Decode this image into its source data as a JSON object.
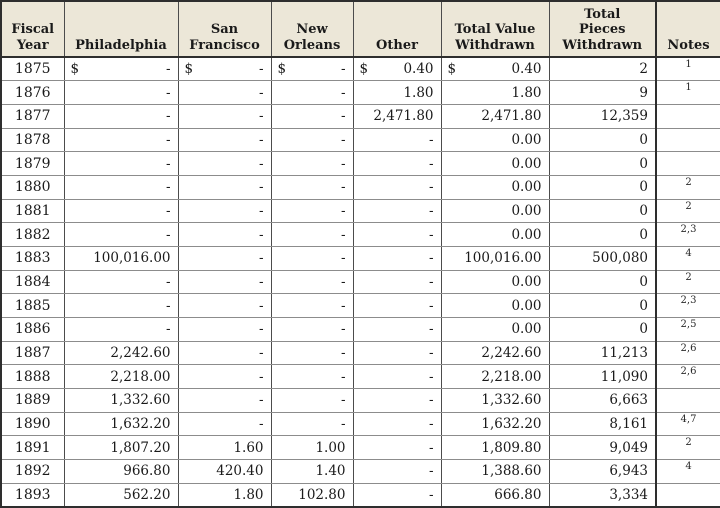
{
  "colors": {
    "header_background": "#ECE7D8",
    "grid_line": "#8C8C8C",
    "heavy_border": "#2E2E2E",
    "text": "#1A1A1A",
    "cell_background": "#FFFFFF"
  },
  "chart_data": {
    "type": "table",
    "title": "",
    "columns": [
      {
        "key": "fiscal_year",
        "label": "Fiscal\nYear"
      },
      {
        "key": "philadelphia",
        "label": "Philadelphia"
      },
      {
        "key": "san_francisco",
        "label": "San\nFrancisco"
      },
      {
        "key": "new_orleans",
        "label": "New\nOrleans"
      },
      {
        "key": "other",
        "label": "Other"
      },
      {
        "key": "total_value_withdrawn",
        "label": "Total Value\nWithdrawn"
      },
      {
        "key": "total_pieces_withdrawn",
        "label": "Total\nPieces\nWithdrawn"
      },
      {
        "key": "notes",
        "label": "Notes"
      }
    ],
    "value_column_keys": [
      "philadelphia",
      "san_francisco",
      "new_orleans",
      "other",
      "total_value_withdrawn",
      "total_pieces_withdrawn"
    ],
    "rows": [
      {
        "year": "1875",
        "values": [
          [
            "$",
            "-"
          ],
          [
            "$",
            "-"
          ],
          [
            "$",
            "-"
          ],
          [
            "$",
            "0.40"
          ],
          [
            "$",
            "0.40"
          ],
          [
            "",
            "2"
          ]
        ],
        "notes": "1"
      },
      {
        "year": "1876",
        "values": [
          [
            "",
            "-"
          ],
          [
            "",
            "-"
          ],
          [
            "",
            "-"
          ],
          [
            "",
            "1.80"
          ],
          [
            "",
            "1.80"
          ],
          [
            "",
            "9"
          ]
        ],
        "notes": "1"
      },
      {
        "year": "1877",
        "values": [
          [
            "",
            "-"
          ],
          [
            "",
            "-"
          ],
          [
            "",
            "-"
          ],
          [
            "",
            "2,471.80"
          ],
          [
            "",
            "2,471.80"
          ],
          [
            "",
            "12,359"
          ]
        ],
        "notes": ""
      },
      {
        "year": "1878",
        "values": [
          [
            "",
            "-"
          ],
          [
            "",
            "-"
          ],
          [
            "",
            "-"
          ],
          [
            "",
            "-"
          ],
          [
            "",
            "0.00"
          ],
          [
            "",
            "0"
          ]
        ],
        "notes": ""
      },
      {
        "year": "1879",
        "values": [
          [
            "",
            "-"
          ],
          [
            "",
            "-"
          ],
          [
            "",
            "-"
          ],
          [
            "",
            "-"
          ],
          [
            "",
            "0.00"
          ],
          [
            "",
            "0"
          ]
        ],
        "notes": ""
      },
      {
        "year": "1880",
        "values": [
          [
            "",
            "-"
          ],
          [
            "",
            "-"
          ],
          [
            "",
            "-"
          ],
          [
            "",
            "-"
          ],
          [
            "",
            "0.00"
          ],
          [
            "",
            "0"
          ]
        ],
        "notes": "2"
      },
      {
        "year": "1881",
        "values": [
          [
            "",
            "-"
          ],
          [
            "",
            "-"
          ],
          [
            "",
            "-"
          ],
          [
            "",
            "-"
          ],
          [
            "",
            "0.00"
          ],
          [
            "",
            "0"
          ]
        ],
        "notes": "2"
      },
      {
        "year": "1882",
        "values": [
          [
            "",
            "-"
          ],
          [
            "",
            "-"
          ],
          [
            "",
            "-"
          ],
          [
            "",
            "-"
          ],
          [
            "",
            "0.00"
          ],
          [
            "",
            "0"
          ]
        ],
        "notes": "2,3"
      },
      {
        "year": "1883",
        "values": [
          [
            "",
            "100,016.00"
          ],
          [
            "",
            "-"
          ],
          [
            "",
            "-"
          ],
          [
            "",
            "-"
          ],
          [
            "",
            "100,016.00"
          ],
          [
            "",
            "500,080"
          ]
        ],
        "notes": "4"
      },
      {
        "year": "1884",
        "values": [
          [
            "",
            "-"
          ],
          [
            "",
            "-"
          ],
          [
            "",
            "-"
          ],
          [
            "",
            "-"
          ],
          [
            "",
            "0.00"
          ],
          [
            "",
            "0"
          ]
        ],
        "notes": "2"
      },
      {
        "year": "1885",
        "values": [
          [
            "",
            "-"
          ],
          [
            "",
            "-"
          ],
          [
            "",
            "-"
          ],
          [
            "",
            "-"
          ],
          [
            "",
            "0.00"
          ],
          [
            "",
            "0"
          ]
        ],
        "notes": "2,3"
      },
      {
        "year": "1886",
        "values": [
          [
            "",
            "-"
          ],
          [
            "",
            "-"
          ],
          [
            "",
            "-"
          ],
          [
            "",
            "-"
          ],
          [
            "",
            "0.00"
          ],
          [
            "",
            "0"
          ]
        ],
        "notes": "2,5"
      },
      {
        "year": "1887",
        "values": [
          [
            "",
            "2,242.60"
          ],
          [
            "",
            "-"
          ],
          [
            "",
            "-"
          ],
          [
            "",
            "-"
          ],
          [
            "",
            "2,242.60"
          ],
          [
            "",
            "11,213"
          ]
        ],
        "notes": "2,6"
      },
      {
        "year": "1888",
        "values": [
          [
            "",
            "2,218.00"
          ],
          [
            "",
            "-"
          ],
          [
            "",
            "-"
          ],
          [
            "",
            "-"
          ],
          [
            "",
            "2,218.00"
          ],
          [
            "",
            "11,090"
          ]
        ],
        "notes": "2,6"
      },
      {
        "year": "1889",
        "values": [
          [
            "",
            "1,332.60"
          ],
          [
            "",
            "-"
          ],
          [
            "",
            "-"
          ],
          [
            "",
            "-"
          ],
          [
            "",
            "1,332.60"
          ],
          [
            "",
            "6,663"
          ]
        ],
        "notes": ""
      },
      {
        "year": "1890",
        "values": [
          [
            "",
            "1,632.20"
          ],
          [
            "",
            "-"
          ],
          [
            "",
            "-"
          ],
          [
            "",
            "-"
          ],
          [
            "",
            "1,632.20"
          ],
          [
            "",
            "8,161"
          ]
        ],
        "notes": "4,7"
      },
      {
        "year": "1891",
        "values": [
          [
            "",
            "1,807.20"
          ],
          [
            "",
            "1.60"
          ],
          [
            "",
            "1.00"
          ],
          [
            "",
            "-"
          ],
          [
            "",
            "1,809.80"
          ],
          [
            "",
            "9,049"
          ]
        ],
        "notes": "2"
      },
      {
        "year": "1892",
        "values": [
          [
            "",
            "966.80"
          ],
          [
            "",
            "420.40"
          ],
          [
            "",
            "1.40"
          ],
          [
            "",
            "-"
          ],
          [
            "",
            "1,388.60"
          ],
          [
            "",
            "6,943"
          ]
        ],
        "notes": "4"
      },
      {
        "year": "1893",
        "values": [
          [
            "",
            "562.20"
          ],
          [
            "",
            "1.80"
          ],
          [
            "",
            "102.80"
          ],
          [
            "",
            "-"
          ],
          [
            "",
            "666.80"
          ],
          [
            "",
            "3,334"
          ]
        ],
        "notes": ""
      }
    ]
  }
}
